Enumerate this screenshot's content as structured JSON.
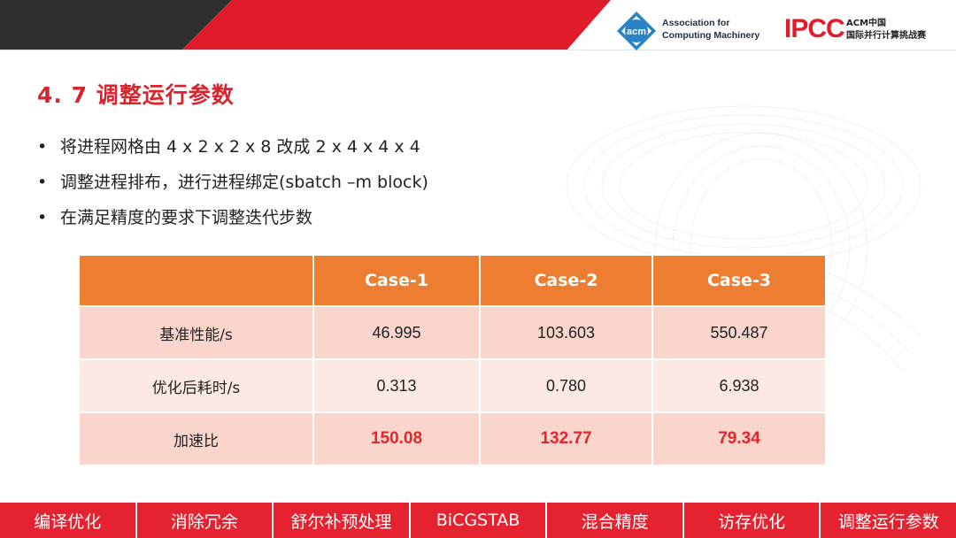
{
  "header": {
    "acm_text": [
      "Association for",
      "Computing Machinery"
    ],
    "acm_logo_text": "acm",
    "ipcc_logo_text": "IPCC",
    "ipcc_text": [
      "ACM中国",
      "国际并行计算挑战赛"
    ],
    "colors": {
      "dark_band": "#2f2f2f",
      "red_band": "#e01b2a"
    }
  },
  "slide": {
    "title": "4. 7 调整运行参数",
    "bullets": [
      "将进程网格由 4 x 2 x 2 x 8 改成 2 x 4 x 4 x 4",
      "调整进程排布，进行进程绑定(sbatch –m block)",
      "在满足精度的要求下调整迭代步数"
    ]
  },
  "table": {
    "headers": [
      "",
      "Case-1",
      "Case-2",
      "Case-3"
    ],
    "rows": [
      {
        "label": "基准性能/s",
        "values": [
          "46.995",
          "103.603",
          "550.487"
        ]
      },
      {
        "label": "优化后耗时/s",
        "values": [
          "0.313",
          "0.780",
          "6.938"
        ]
      },
      {
        "label": "加速比",
        "values": [
          "150.08",
          "132.77",
          "79.34"
        ]
      }
    ],
    "colors": {
      "header": "#ed7d31",
      "row_odd": "#f9d5cb",
      "row_even": "#fce9e4",
      "highlight": "#e0262e"
    }
  },
  "nav": {
    "items": [
      "编译优化",
      "消除冗余",
      "舒尔补预处理",
      "BiCGSTAB",
      "混合精度",
      "访存优化",
      "调整运行参数"
    ],
    "color": "#e52230"
  }
}
